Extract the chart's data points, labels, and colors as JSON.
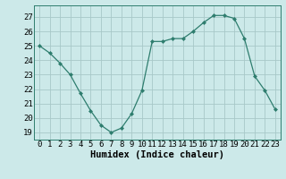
{
  "x": [
    0,
    1,
    2,
    3,
    4,
    5,
    6,
    7,
    8,
    9,
    10,
    11,
    12,
    13,
    14,
    15,
    16,
    17,
    18,
    19,
    20,
    21,
    22,
    23
  ],
  "y": [
    25.0,
    24.5,
    23.8,
    23.0,
    21.7,
    20.5,
    19.5,
    19.0,
    19.3,
    20.3,
    21.9,
    25.3,
    25.3,
    25.5,
    25.5,
    26.0,
    26.6,
    27.1,
    27.1,
    26.9,
    25.5,
    22.9,
    21.9,
    20.6
  ],
  "xlabel": "Humidex (Indice chaleur)",
  "ylim": [
    18.5,
    27.8
  ],
  "xlim": [
    -0.5,
    23.5
  ],
  "yticks": [
    19,
    20,
    21,
    22,
    23,
    24,
    25,
    26,
    27
  ],
  "xticks": [
    0,
    1,
    2,
    3,
    4,
    5,
    6,
    7,
    8,
    9,
    10,
    11,
    12,
    13,
    14,
    15,
    16,
    17,
    18,
    19,
    20,
    21,
    22,
    23
  ],
  "line_color": "#2e7d6e",
  "marker_color": "#2e7d6e",
  "bg_color": "#cce9e9",
  "grid_color": "#b8d8d8",
  "tick_label_fontsize": 6.5,
  "xlabel_fontsize": 7.5
}
